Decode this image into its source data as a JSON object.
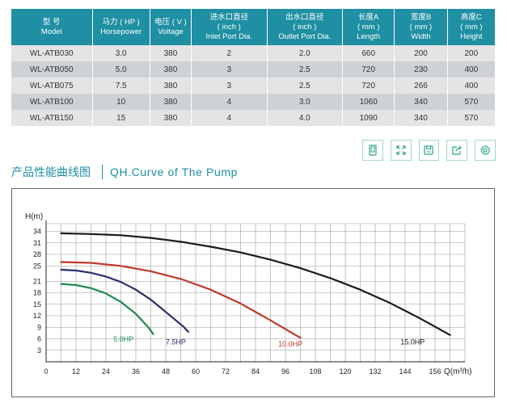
{
  "table": {
    "headers": [
      {
        "cn": "型 号",
        "en": "Model"
      },
      {
        "cn": "马力 ( HP )",
        "en": "Horsepower"
      },
      {
        "cn": "电压 ( V )",
        "en": "Voltage"
      },
      {
        "cn": "进水口直径",
        "sub": "( inch )",
        "en": "Inlet Port Dia."
      },
      {
        "cn": "出水口直径",
        "sub": "( inch )",
        "en": "Outlet Port Dia."
      },
      {
        "cn": "长度A",
        "sub": "( mm )",
        "en": "Length"
      },
      {
        "cn": "宽度B",
        "sub": "( mm )",
        "en": "Width"
      },
      {
        "cn": "高度C",
        "sub": "( mm )",
        "en": "Height"
      }
    ],
    "rows": [
      [
        "WL-ATB030",
        "3.0",
        "380",
        "2",
        "2.0",
        "660",
        "200",
        "200"
      ],
      [
        "WL-ATB050",
        "5.0",
        "380",
        "3",
        "2.5",
        "720",
        "230",
        "400"
      ],
      [
        "WL-ATB075",
        "7.5",
        "380",
        "3",
        "2.5",
        "720",
        "266",
        "400"
      ],
      [
        "WL-ATB100",
        "10",
        "380",
        "4",
        "3.0",
        "1060",
        "340",
        "570"
      ],
      [
        "WL-ATB150",
        "15",
        "380",
        "4",
        "4.0",
        "1090",
        "340",
        "570"
      ]
    ]
  },
  "toolbar": {
    "icons": [
      "mobile-icon",
      "fullscreen-icon",
      "save-icon",
      "share-icon",
      "settings-icon"
    ]
  },
  "section": {
    "title_cn": "产品性能曲线图",
    "title_en": "QH.Curve of The Pump"
  },
  "chart_data": {
    "type": "line",
    "title": "",
    "xlabel": "Q(m³/h)",
    "ylabel": "H(m)",
    "xlim": [
      0,
      168
    ],
    "ylim": [
      0,
      36
    ],
    "x_ticks": [
      0,
      12,
      24,
      36,
      48,
      60,
      72,
      84,
      96,
      108,
      120,
      132,
      144,
      156
    ],
    "y_ticks": [
      3,
      6,
      9,
      12,
      15,
      18,
      21,
      25,
      28,
      31,
      34
    ],
    "grid": true,
    "series": [
      {
        "name": "5.0HP",
        "color": "#1e8a4c",
        "label_at": [
          31,
          5.3
        ],
        "x": [
          6,
          12,
          18,
          24,
          30,
          36,
          41,
          43
        ],
        "y": [
          20.3,
          20.0,
          19.2,
          17.8,
          15.6,
          12.5,
          9.0,
          7.2
        ]
      },
      {
        "name": "7.5HP",
        "color": "#2a2e6e",
        "label_at": [
          52,
          4.5
        ],
        "x": [
          6,
          12,
          18,
          24,
          30,
          36,
          42,
          48,
          55,
          57
        ],
        "y": [
          24.0,
          23.8,
          23.2,
          22.2,
          20.8,
          18.8,
          16.2,
          13.0,
          9.2,
          7.8
        ]
      },
      {
        "name": "10.0HP",
        "color": "#c0392b",
        "label_at": [
          98,
          4.0
        ],
        "x": [
          6,
          18,
          30,
          42,
          54,
          66,
          78,
          90,
          100,
          102
        ],
        "y": [
          26.0,
          25.8,
          25.0,
          23.6,
          21.6,
          18.8,
          15.2,
          10.8,
          7.0,
          6.3
        ]
      },
      {
        "name": "15.0HP",
        "color": "#1a1a1a",
        "label_at": [
          147,
          4.5
        ],
        "x": [
          6,
          18,
          30,
          42,
          54,
          66,
          78,
          90,
          102,
          114,
          126,
          138,
          150,
          162
        ],
        "y": [
          33.5,
          33.3,
          33.0,
          32.3,
          31.3,
          30.0,
          28.5,
          26.6,
          24.4,
          21.8,
          18.8,
          15.3,
          11.3,
          7.0
        ]
      }
    ]
  }
}
